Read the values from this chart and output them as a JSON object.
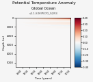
{
  "title_line1": "Potential Temperature Anomaly",
  "title_line2": "Global Ocean",
  "subtitle": "v2.1.8.MIP070_S2R3",
  "xlabel": "Time (years)",
  "ylabel": "Depth (m)",
  "vmin": -0.4,
  "vmax": 0.4,
  "depth_max_m": 5500,
  "year_start": 1860,
  "year_end": 2020,
  "cmap": "RdBu_r",
  "colorbar_ticks": [
    0.4,
    0.3,
    0.2,
    0.1,
    0.0,
    -0.1,
    -0.2,
    -0.3,
    -0.4
  ],
  "fig_bg": "#f5f5f5"
}
